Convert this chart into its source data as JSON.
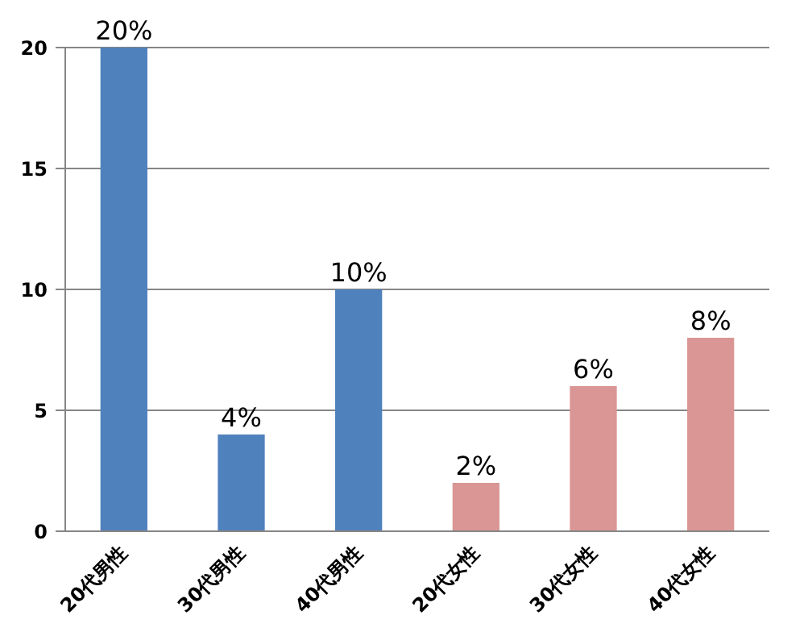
{
  "chart_data": {
    "type": "bar",
    "categories": [
      "20代男性",
      "30代男性",
      "40代男性",
      "20代女性",
      "30代女性",
      "40代女性"
    ],
    "values": [
      20,
      4,
      10,
      2,
      6,
      8
    ],
    "colors": [
      "#4f81bd",
      "#4f81bd",
      "#4f81bd",
      "#d99694",
      "#d99694",
      "#d99694"
    ],
    "value_labels": [
      "20%",
      "4%",
      "10%",
      "2%",
      "6%",
      "8%"
    ],
    "ylim": [
      0,
      20
    ],
    "yticks": [
      0,
      5,
      10,
      15,
      20
    ],
    "grid": "y"
  }
}
